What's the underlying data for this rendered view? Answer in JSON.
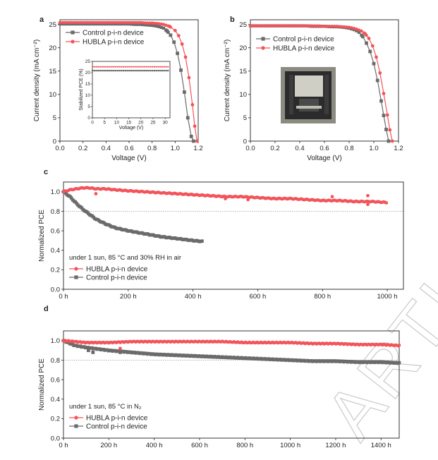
{
  "watermark": "ARTICLE",
  "colors": {
    "control": "#6b6b6b",
    "hubla": "#f2545b",
    "reference": "#888888"
  },
  "chart_data": [
    {
      "panel": "a",
      "type": "line",
      "xlabel": "Voltage (V)",
      "ylabel": "Current density (mA cm⁻²)",
      "xlim": [
        0,
        1.2
      ],
      "ylim": [
        0,
        26
      ],
      "xticks": [
        "0.0",
        "0.2",
        "0.4",
        "0.6",
        "0.8",
        "1.0",
        "1.2"
      ],
      "yticks": [
        "0",
        "5",
        "10",
        "15",
        "20",
        "25"
      ],
      "legend_placement": "top-left",
      "series": [
        {
          "name": "Control p-i-n device",
          "color_key": "control",
          "marker": "square",
          "x": [
            0,
            0.05,
            0.1,
            0.15,
            0.2,
            0.25,
            0.3,
            0.35,
            0.4,
            0.45,
            0.5,
            0.55,
            0.6,
            0.65,
            0.7,
            0.75,
            0.8,
            0.85,
            0.9,
            0.93,
            0.96,
            0.99,
            1.02,
            1.05,
            1.08,
            1.11,
            1.14,
            1.16
          ],
          "y": [
            25.1,
            25.1,
            25.1,
            25.1,
            25.1,
            25.1,
            25.1,
            25.1,
            25.1,
            25.1,
            25.1,
            25.1,
            25.1,
            25.0,
            25.0,
            24.9,
            24.8,
            24.6,
            24.2,
            23.6,
            22.7,
            21.2,
            18.8,
            15.2,
            10.5,
            5.0,
            1.0,
            0
          ]
        },
        {
          "name": "HUBLA p-i-n device",
          "color_key": "hubla",
          "marker": "circle",
          "x": [
            0,
            0.05,
            0.1,
            0.15,
            0.2,
            0.25,
            0.3,
            0.35,
            0.4,
            0.45,
            0.5,
            0.55,
            0.6,
            0.65,
            0.7,
            0.75,
            0.8,
            0.85,
            0.9,
            0.95,
            1.0,
            1.03,
            1.06,
            1.09,
            1.12,
            1.15,
            1.17,
            1.19
          ],
          "y": [
            25.4,
            25.4,
            25.4,
            25.4,
            25.4,
            25.4,
            25.4,
            25.4,
            25.4,
            25.4,
            25.4,
            25.4,
            25.4,
            25.4,
            25.4,
            25.3,
            25.3,
            25.2,
            25.0,
            24.6,
            23.7,
            22.6,
            20.8,
            18.0,
            13.6,
            7.8,
            3.2,
            0
          ]
        }
      ],
      "inset": {
        "xlabel": "Voltage (V)",
        "ylabel": "Stabilized PCE (%)",
        "xlim": [
          0,
          32
        ],
        "ylim": [
          0,
          25
        ],
        "xticks": [
          "0",
          "5",
          "10",
          "15",
          "20",
          "25",
          "30"
        ],
        "yticks": [
          "0",
          "5",
          "10",
          "15",
          "20",
          "25"
        ],
        "series": [
          {
            "color_key": "hubla",
            "marker": "circle",
            "value": 22.6,
            "x_end": 32
          },
          {
            "color_key": "control",
            "marker": "square",
            "value": 20.9,
            "x_end": 32
          }
        ]
      }
    },
    {
      "panel": "b",
      "type": "line",
      "xlabel": "Voltage (V)",
      "ylabel": "Current density (mA cm⁻²)",
      "xlim": [
        0,
        1.2
      ],
      "ylim": [
        0,
        26
      ],
      "xticks": [
        "0.0",
        "0.2",
        "0.4",
        "0.6",
        "0.8",
        "1.0",
        "1.2"
      ],
      "yticks": [
        "0",
        "5",
        "10",
        "15",
        "20",
        "25"
      ],
      "legend_placement": "top-left",
      "series": [
        {
          "name": "Control p-i-n device",
          "color_key": "control",
          "marker": "square",
          "x": [
            0,
            0.05,
            0.1,
            0.15,
            0.2,
            0.25,
            0.3,
            0.35,
            0.4,
            0.45,
            0.5,
            0.55,
            0.6,
            0.65,
            0.7,
            0.75,
            0.8,
            0.85,
            0.88,
            0.91,
            0.94,
            0.97,
            1.0,
            1.03,
            1.06,
            1.08,
            1.1,
            1.12
          ],
          "y": [
            24.7,
            24.7,
            24.7,
            24.7,
            24.7,
            24.7,
            24.7,
            24.7,
            24.7,
            24.7,
            24.6,
            24.6,
            24.6,
            24.5,
            24.5,
            24.4,
            24.2,
            23.8,
            23.3,
            22.4,
            21.0,
            19.2,
            16.6,
            13.0,
            8.6,
            5.5,
            2.5,
            0
          ]
        },
        {
          "name": "HUBLA p-i-n device",
          "color_key": "hubla",
          "marker": "circle",
          "x": [
            0,
            0.05,
            0.1,
            0.15,
            0.2,
            0.25,
            0.3,
            0.35,
            0.4,
            0.45,
            0.5,
            0.55,
            0.6,
            0.65,
            0.7,
            0.75,
            0.8,
            0.85,
            0.9,
            0.93,
            0.96,
            0.99,
            1.02,
            1.05,
            1.08,
            1.11,
            1.13,
            1.15
          ],
          "y": [
            24.7,
            24.7,
            24.7,
            24.7,
            24.7,
            24.7,
            24.7,
            24.7,
            24.7,
            24.7,
            24.7,
            24.7,
            24.6,
            24.6,
            24.6,
            24.5,
            24.4,
            24.1,
            23.6,
            23.0,
            22.0,
            20.4,
            18.0,
            14.6,
            10.2,
            5.6,
            2.4,
            0
          ]
        }
      ],
      "inset_photo": true
    },
    {
      "panel": "c",
      "type": "scatter",
      "xlabel": "",
      "ylabel": "Normalized PCE",
      "xlim": [
        0,
        1050
      ],
      "ylim": [
        0,
        1.1
      ],
      "xticks": [
        "0 h",
        "200 h",
        "400 h",
        "600 h",
        "800 h",
        "1000 h"
      ],
      "xtick_values": [
        0,
        200,
        400,
        600,
        800,
        1000
      ],
      "yticks": [
        "0.0",
        "0.2",
        "0.4",
        "0.6",
        "0.8",
        "1.0"
      ],
      "reference_line": 0.8,
      "annotation": "under 1 sun, 85 °C and 30% RH in air",
      "legend_placement": "bottom-left",
      "series": [
        {
          "name": "HUBLA p-i-n device",
          "color_key": "hubla",
          "marker": "circle",
          "x": [
            0,
            20,
            40,
            60,
            80,
            100,
            130,
            160,
            200,
            250,
            300,
            350,
            400,
            450,
            500,
            550,
            600,
            650,
            700,
            750,
            800,
            850,
            900,
            950,
            1000
          ],
          "y": [
            1.0,
            1.02,
            1.03,
            1.04,
            1.04,
            1.03,
            1.03,
            1.02,
            1.01,
            1.0,
            0.99,
            0.98,
            0.97,
            0.96,
            0.95,
            0.95,
            0.94,
            0.93,
            0.93,
            0.92,
            0.91,
            0.91,
            0.9,
            0.9,
            0.89
          ],
          "outliers": [
            [
              100,
              0.98
            ],
            [
              500,
              0.93
            ],
            [
              570,
              0.92
            ],
            [
              830,
              0.95
            ],
            [
              940,
              0.96
            ],
            [
              940,
              0.87
            ]
          ]
        },
        {
          "name": "Control p-i-n device",
          "color_key": "control",
          "marker": "square",
          "x": [
            0,
            20,
            40,
            60,
            80,
            100,
            130,
            160,
            200,
            250,
            300,
            350,
            400,
            430
          ],
          "y": [
            1.0,
            0.95,
            0.88,
            0.82,
            0.77,
            0.72,
            0.67,
            0.63,
            0.6,
            0.57,
            0.54,
            0.52,
            0.5,
            0.49
          ]
        }
      ]
    },
    {
      "panel": "d",
      "type": "scatter",
      "xlabel": "",
      "ylabel": "Normalized PCE",
      "xlim": [
        0,
        1480
      ],
      "ylim": [
        0,
        1.1
      ],
      "xticks": [
        "0 h",
        "200 h",
        "400 h",
        "600 h",
        "800 h",
        "1000 h",
        "1200 h",
        "1400 h"
      ],
      "xtick_values": [
        0,
        200,
        400,
        600,
        800,
        1000,
        1200,
        1400
      ],
      "yticks": [
        "0.0",
        "0.2",
        "0.4",
        "0.6",
        "0.8",
        "1.0"
      ],
      "reference_line": 0.8,
      "annotation": "under 1 sun, 85 °C in N₂",
      "legend_placement": "bottom-left",
      "series": [
        {
          "name": "HUBLA p-i-n device",
          "color_key": "hubla",
          "marker": "circle",
          "x": [
            0,
            50,
            100,
            200,
            300,
            400,
            500,
            600,
            700,
            800,
            900,
            1000,
            1100,
            1200,
            1300,
            1400,
            1480
          ],
          "y": [
            1.0,
            0.99,
            0.98,
            0.98,
            0.99,
            0.99,
            0.99,
            0.99,
            0.99,
            0.98,
            0.98,
            0.98,
            0.97,
            0.97,
            0.96,
            0.96,
            0.95
          ],
          "outliers": [
            [
              250,
              0.92
            ]
          ]
        },
        {
          "name": "Control p-i-n device",
          "color_key": "control",
          "marker": "square",
          "x": [
            0,
            50,
            100,
            200,
            300,
            400,
            500,
            600,
            700,
            800,
            900,
            1000,
            1100,
            1200,
            1300,
            1400,
            1480
          ],
          "y": [
            1.0,
            0.95,
            0.93,
            0.9,
            0.88,
            0.86,
            0.85,
            0.84,
            0.83,
            0.82,
            0.81,
            0.8,
            0.79,
            0.79,
            0.78,
            0.78,
            0.77
          ],
          "outliers": [
            [
              110,
              0.9
            ],
            [
              130,
              0.88
            ],
            [
              250,
              0.88
            ]
          ]
        }
      ]
    }
  ]
}
